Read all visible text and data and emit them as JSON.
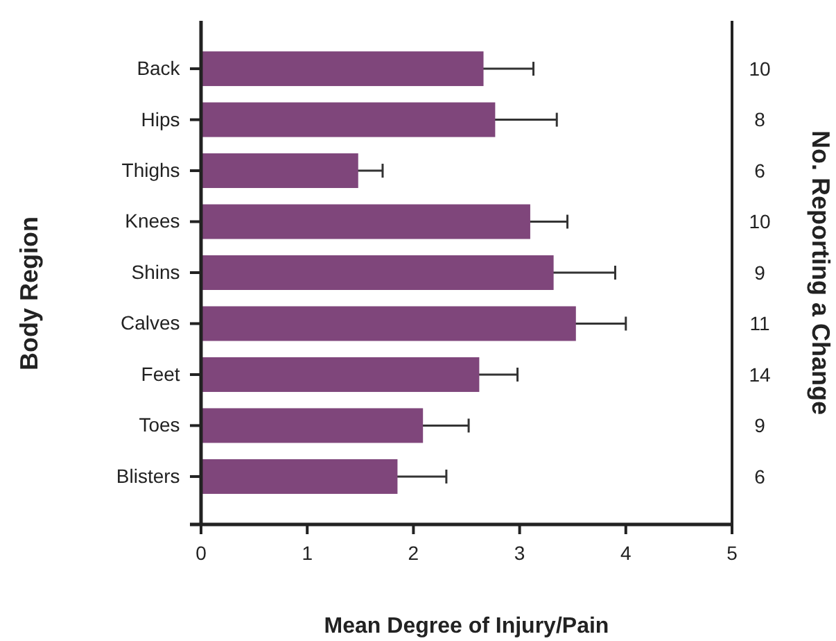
{
  "chart_data": {
    "type": "bar",
    "orientation": "horizontal",
    "xlabel": "Mean Degree of Injury/Pain",
    "ylabel": "Body Region",
    "y2label": "No. Reporting a Change",
    "categories": [
      "Back",
      "Hips",
      "Thighs",
      "Knees",
      "Shins",
      "Calves",
      "Feet",
      "Toes",
      "Blisters"
    ],
    "values": [
      2.66,
      2.77,
      1.48,
      3.1,
      3.32,
      3.53,
      2.62,
      2.09,
      1.85
    ],
    "errors": [
      0.47,
      0.58,
      0.23,
      0.35,
      0.58,
      0.47,
      0.36,
      0.43,
      0.46
    ],
    "color": "#7f467b",
    "xlim": [
      0,
      5
    ],
    "xticks": [
      0,
      1,
      2,
      3,
      4,
      5
    ],
    "grid": false,
    "annotations": [
      "10",
      "8",
      "6",
      "10",
      "9",
      "11",
      "14",
      "9",
      "6"
    ]
  }
}
